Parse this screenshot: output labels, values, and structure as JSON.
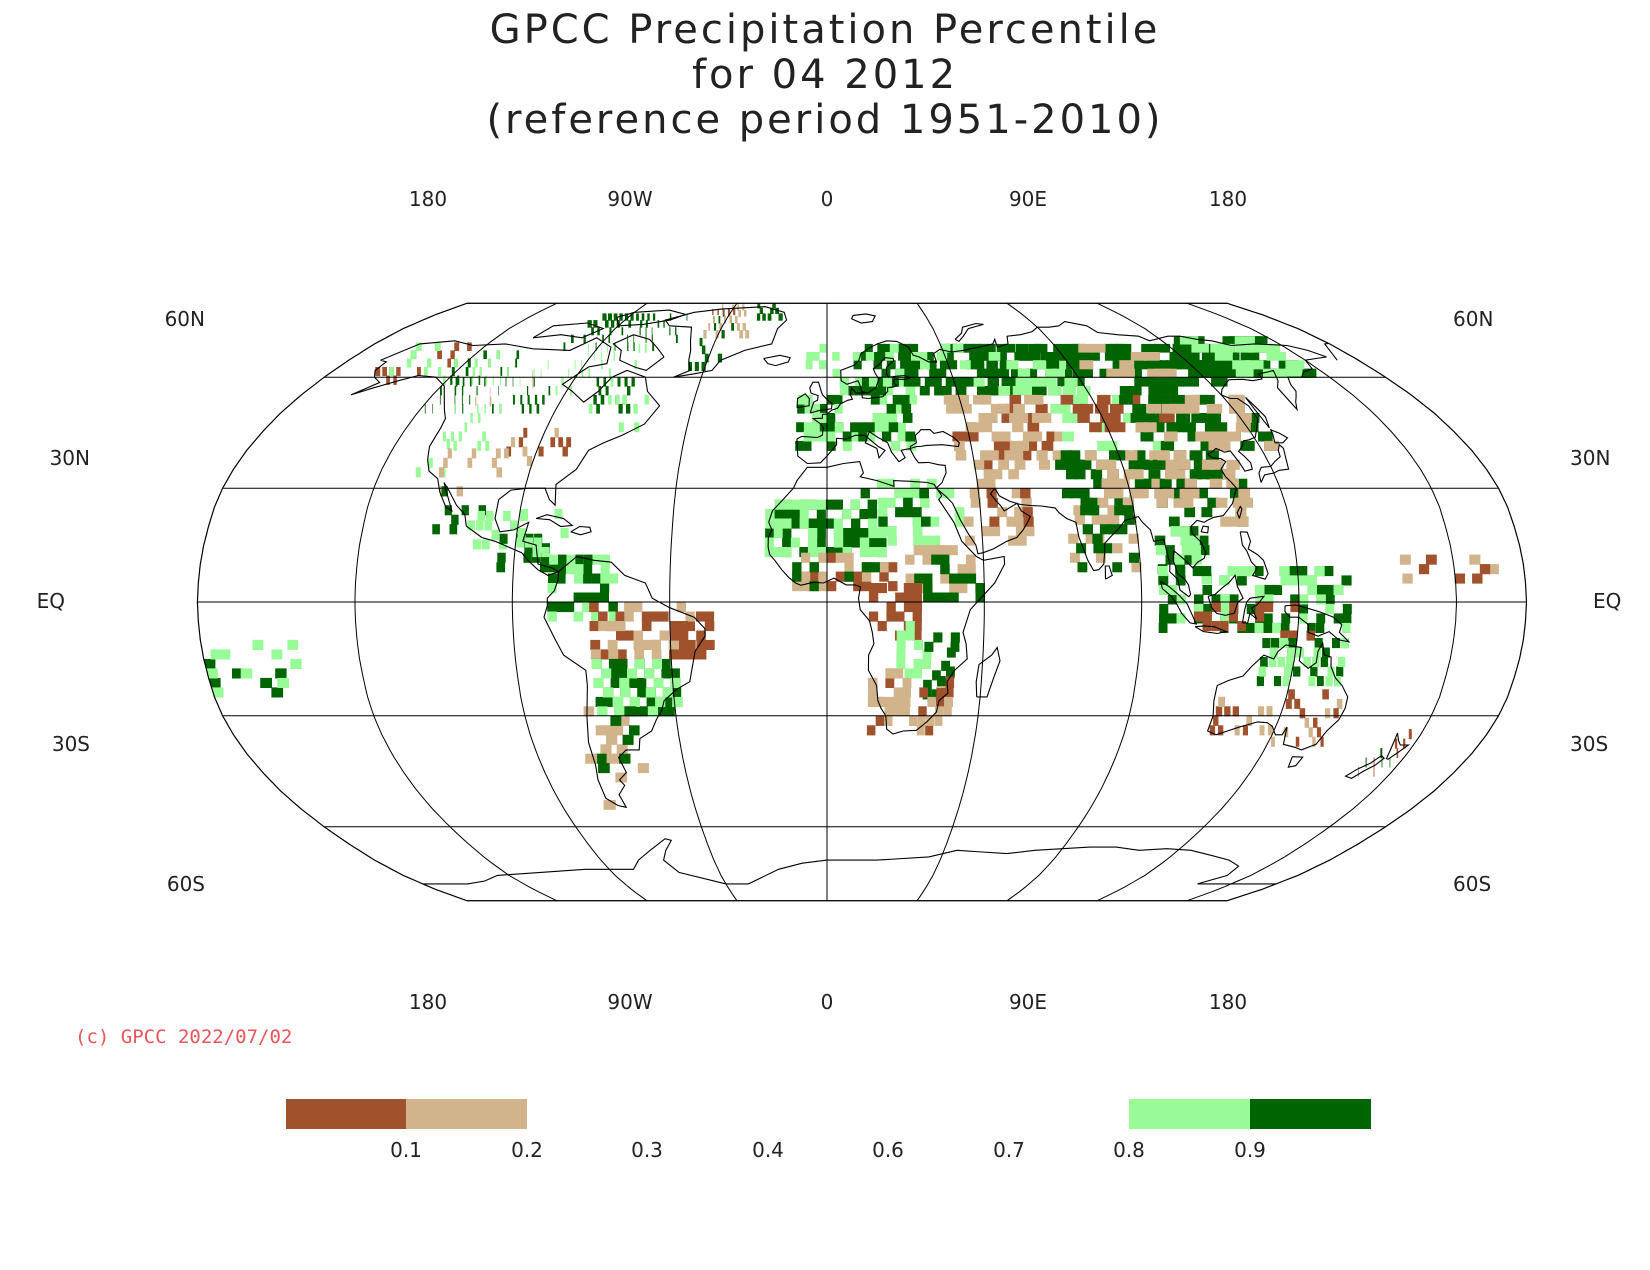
{
  "title": {
    "line1": "GPCC Precipitation Percentile",
    "line2": "for 04 2012",
    "line3": "(reference period 1951-2010)"
  },
  "map": {
    "projection": "Robinson",
    "longitude_labels_top": [
      "180",
      "90W",
      "0",
      "90E",
      "180"
    ],
    "longitude_labels_bottom": [
      "180",
      "90W",
      "0",
      "90E",
      "180"
    ],
    "latitude_labels": [
      "60N",
      "30N",
      "EQ",
      "30S",
      "60S"
    ],
    "colors": {
      "below_0.1": "#a0522d",
      "0.1_to_0.2": "#d2b48c",
      "0.8_to_0.9": "#98fb98",
      "above_0.9": "#006400",
      "coast": "#000000",
      "grid": "#000000"
    }
  },
  "copyright": "(c) GPCC 2022/07/02",
  "legend": {
    "ticks": [
      "0.1",
      "0.2",
      "0.3",
      "0.4",
      "0.6",
      "0.7",
      "0.8",
      "0.9"
    ],
    "boxes": [
      {
        "color": "#a0522d",
        "range": "<0.1"
      },
      {
        "color": "#d2b48c",
        "range": "0.1-0.2"
      },
      {
        "color": "#98fb98",
        "range": "0.8-0.9"
      },
      {
        "color": "#006400",
        "range": ">0.9"
      }
    ]
  }
}
